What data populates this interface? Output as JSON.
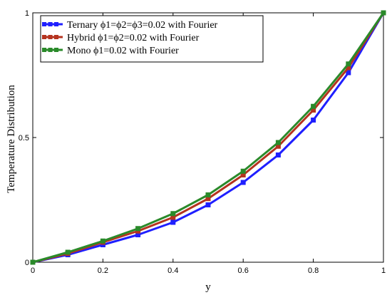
{
  "chart_data": {
    "type": "line",
    "title": "",
    "xlabel": "y",
    "ylabel": "Temperature Distribution",
    "xlim": [
      0,
      1
    ],
    "ylim": [
      0,
      1
    ],
    "x_ticks": [
      "0",
      "0.2",
      "0.4",
      "0.6",
      "0.8",
      "1"
    ],
    "y_ticks": [
      "0",
      "0.5",
      "1"
    ],
    "grid": false,
    "legend_position": "top-left",
    "x": [
      0,
      0.1,
      0.2,
      0.3,
      0.4,
      0.5,
      0.6,
      0.7,
      0.8,
      0.9,
      1.0
    ],
    "series": [
      {
        "name": "Ternary ϕ1=ϕ2=ϕ3=0.02 with Fourier",
        "color": "#1f1fff",
        "values": [
          0,
          0.03,
          0.07,
          0.11,
          0.16,
          0.23,
          0.32,
          0.43,
          0.57,
          0.76,
          1.0
        ]
      },
      {
        "name": "Hybrid ϕ1=ϕ2=0.02 with Fourier",
        "color": "#b5331f",
        "values": [
          0,
          0.035,
          0.08,
          0.125,
          0.18,
          0.255,
          0.35,
          0.465,
          0.61,
          0.78,
          1.0
        ]
      },
      {
        "name": "Mono ϕ1=0.02 with Fourier",
        "color": "#2a8a2a",
        "values": [
          0,
          0.04,
          0.085,
          0.135,
          0.195,
          0.27,
          0.365,
          0.48,
          0.625,
          0.795,
          1.0
        ]
      }
    ]
  }
}
